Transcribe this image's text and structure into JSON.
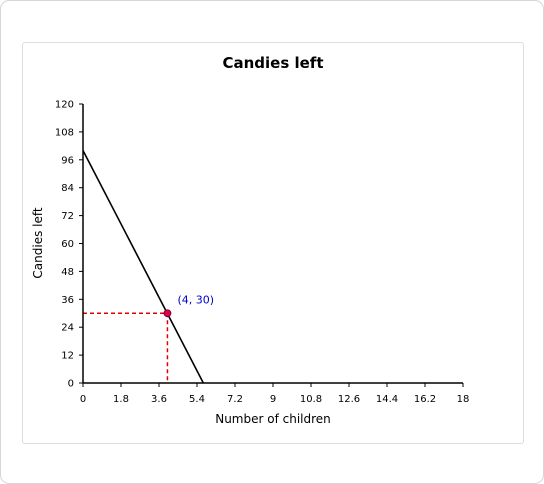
{
  "chart_data": {
    "type": "line",
    "title": "Candies left",
    "xlabel": "Number of children",
    "ylabel": "Candies left",
    "xlim": [
      0,
      18
    ],
    "ylim": [
      0,
      120
    ],
    "xticks": [
      "0",
      "1.8",
      "3.6",
      "5.4",
      "7.2",
      "9",
      "10.8",
      "12.6",
      "14.4",
      "16.2",
      "18"
    ],
    "yticks": [
      "0",
      "12",
      "24",
      "36",
      "48",
      "60",
      "72",
      "84",
      "96",
      "108",
      "120"
    ],
    "series": [
      {
        "x": [
          0,
          5.7
        ],
        "y": [
          100,
          0
        ],
        "color": "#000000"
      }
    ],
    "highlight_point": {
      "x": 4,
      "y": 30,
      "label": "(4, 30)",
      "color": "#e0004d",
      "label_color": "#0000cc",
      "guide_color": "#e00000"
    },
    "grid": false
  }
}
